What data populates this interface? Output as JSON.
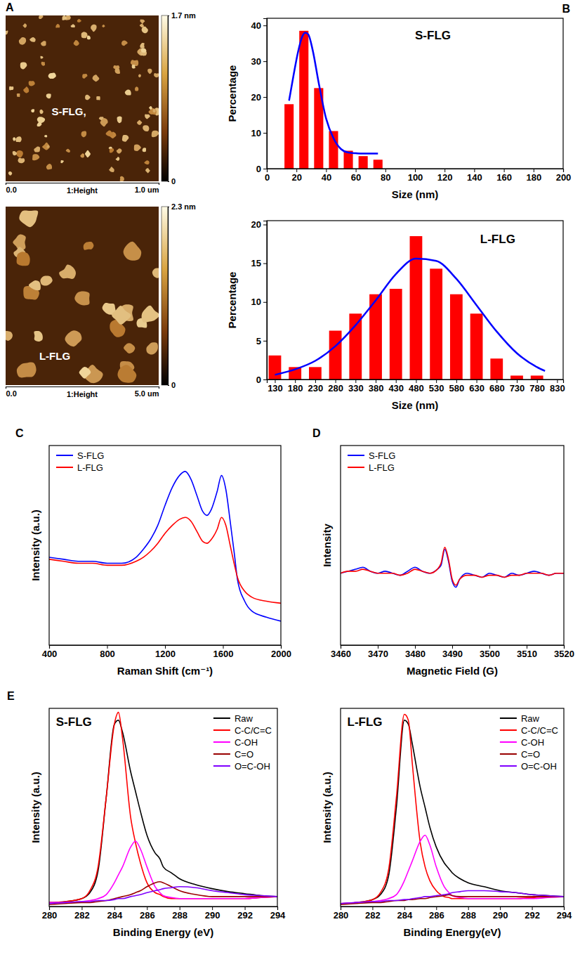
{
  "chart_data": [
    {
      "type": "image",
      "panel": "A",
      "title": "S-FLG,",
      "xlim": [
        0,
        1
      ],
      "xticks": [
        {
          "value": 0,
          "label": "0.0"
        },
        {
          "value": 1,
          "label": "1.0 um"
        }
      ],
      "xlabel": "1:Height",
      "colorbar": {
        "range": [
          0,
          1.7
        ],
        "ticks": [
          0,
          {
            "value": 1.7,
            "label": "1.7 nm"
          }
        ]
      }
    },
    {
      "type": "image",
      "title": "L-FLG",
      "xlim": [
        0,
        5
      ],
      "xticks": [
        {
          "value": 0,
          "label": "0.0"
        },
        {
          "value": 5,
          "label": "5.0 um"
        }
      ],
      "xlabel": "1:Height",
      "colorbar": {
        "range": [
          0,
          2.3
        ],
        "ticks": [
          0,
          {
            "value": 2.3,
            "label": "2.3 nm"
          }
        ]
      }
    },
    {
      "type": "bar",
      "panel": "B",
      "title": "S-FLG",
      "xlabel": "Size (nm)",
      "ylabel": "Percentage",
      "x": [
        15,
        25,
        35,
        45,
        55,
        65,
        75
      ],
      "values": [
        18,
        38.5,
        22.5,
        10.5,
        5,
        3.5,
        2.5
      ],
      "color": "#ff0000",
      "fit": {
        "x": [
          15,
          18,
          21,
          24,
          26,
          28,
          31,
          35,
          40,
          45,
          50,
          55,
          60,
          65,
          70,
          75
        ],
        "values": [
          19,
          26,
          32.5,
          37,
          38,
          37.5,
          33,
          24,
          14,
          8.5,
          5.5,
          4.5,
          4.3,
          4.2,
          4.2,
          4.2
        ],
        "color": "#0000ff"
      },
      "xlim": [
        0,
        200
      ],
      "xticks": [
        0,
        20,
        40,
        60,
        80,
        100,
        120,
        140,
        160,
        180,
        200
      ],
      "ylim": [
        0,
        42
      ],
      "yticks": [
        0,
        10,
        20,
        30,
        40
      ]
    },
    {
      "type": "bar",
      "title": "L-FLG",
      "xlabel": "Size (nm)",
      "ylabel": "Percentage",
      "x": [
        130,
        180,
        230,
        280,
        330,
        380,
        430,
        480,
        530,
        580,
        630,
        680,
        730,
        780
      ],
      "values": [
        3.1,
        1.6,
        1.6,
        6.3,
        8.5,
        11,
        11.7,
        18.5,
        14.3,
        11,
        8.5,
        2.7,
        0.5,
        0.5
      ],
      "color": "#ff0000",
      "fit": {
        "x": [
          130,
          180,
          230,
          280,
          330,
          380,
          430,
          480,
          530,
          580,
          630,
          680,
          730,
          780,
          800
        ],
        "values": [
          0.6,
          1.3,
          2.4,
          4.3,
          7.0,
          10.2,
          13.6,
          15.6,
          15.3,
          13.0,
          9.6,
          6.2,
          3.4,
          1.6,
          1.1
        ],
        "color": "#0000ff"
      },
      "xlim": [
        110,
        845
      ],
      "xticks": [
        130,
        180,
        230,
        280,
        330,
        380,
        430,
        480,
        530,
        580,
        630,
        680,
        730,
        780,
        830
      ],
      "ylim": [
        0,
        20.5
      ],
      "yticks": [
        0,
        5,
        10,
        15,
        20
      ]
    },
    {
      "type": "line",
      "panel": "C",
      "xlabel": "Raman Shift (cm⁻¹)",
      "ylabel": "Intensity (a.u.)",
      "x": [
        400,
        500,
        600,
        700,
        800,
        900,
        1000,
        1050,
        1100,
        1150,
        1200,
        1250,
        1300,
        1340,
        1380,
        1420,
        1460,
        1490,
        1520,
        1560,
        1590,
        1620,
        1650,
        1680,
        1700,
        1750,
        1800,
        1900,
        2000
      ],
      "series": [
        {
          "name": "S-FLG",
          "color": "#0000ff",
          "values": [
            44,
            43,
            42,
            42,
            41,
            41,
            44,
            48,
            53,
            60,
            70,
            79,
            85,
            87,
            83,
            75,
            67,
            65,
            68,
            77,
            85,
            78,
            62,
            45,
            33,
            22,
            17,
            14,
            12
          ]
        },
        {
          "name": "L-FLG",
          "color": "#ff0000",
          "values": [
            43,
            42,
            41,
            41,
            40,
            40,
            42,
            44,
            47,
            51,
            56,
            60,
            63,
            64,
            62,
            57,
            52,
            51,
            53,
            58,
            64,
            60,
            50,
            40,
            34,
            27,
            24,
            22,
            21
          ]
        }
      ],
      "xlim": [
        400,
        2000
      ],
      "xticks": [
        400,
        800,
        1200,
        1600,
        2000
      ],
      "ylim": [
        0,
        100
      ],
      "tick_labels": "x",
      "legend": "top-left"
    },
    {
      "type": "line",
      "panel": "D",
      "xlabel": "Magnetic Field (G)",
      "ylabel": "Intensity",
      "x": [
        3460,
        3462,
        3464,
        3466,
        3468,
        3470,
        3472,
        3474,
        3476,
        3478,
        3480,
        3482,
        3484,
        3486,
        3487,
        3488,
        3489,
        3490,
        3491,
        3492,
        3494,
        3496,
        3498,
        3500,
        3502,
        3504,
        3506,
        3508,
        3510,
        3512,
        3514,
        3516,
        3518,
        3520
      ],
      "series": [
        {
          "name": "S-FLG",
          "color": "#0000ff",
          "values": [
            36,
            37,
            38,
            39,
            37,
            36,
            37,
            36,
            35,
            37,
            39,
            37,
            36,
            38,
            40,
            48,
            42,
            32,
            29,
            33,
            36,
            35,
            34,
            36,
            35,
            34,
            36,
            35,
            36,
            37,
            36,
            35,
            36,
            36
          ]
        },
        {
          "name": "L-FLG",
          "color": "#ff0000",
          "values": [
            36,
            37,
            37,
            38,
            37,
            36,
            36,
            36,
            35,
            36,
            38,
            37,
            36,
            38,
            41,
            49,
            43,
            33,
            30,
            33,
            35,
            35,
            34,
            35,
            35,
            34,
            35,
            35,
            36,
            36,
            36,
            35,
            36,
            36
          ]
        }
      ],
      "xlim": [
        3460,
        3520
      ],
      "xticks": [
        3460,
        3470,
        3480,
        3490,
        3500,
        3510,
        3520
      ],
      "ylim": [
        0,
        100
      ],
      "tick_labels": "x",
      "legend": "top-left"
    },
    {
      "type": "line",
      "panel": "E",
      "title": "S-FLG",
      "xlabel": "Binding Energy (eV)",
      "ylabel": "Intensity (a.u.)",
      "x": [
        280,
        281,
        282,
        282.5,
        283,
        283.5,
        284,
        284.25,
        284.5,
        285,
        285.3,
        285.6,
        286,
        286.5,
        286.8,
        287,
        287.5,
        288,
        289,
        290,
        291,
        292,
        293,
        294
      ],
      "series": [
        {
          "name": "Raw",
          "color": "#000000",
          "values": [
            2,
            2.5,
            4,
            7,
            18,
            55,
            92,
            94,
            88,
            68,
            58,
            48,
            36,
            27,
            24,
            20,
            17,
            14,
            11,
            9,
            7.5,
            6.5,
            5.5,
            5
          ]
        },
        {
          "name": "C-C/C=C",
          "color": "#ff0000",
          "values": [
            2,
            2.5,
            4,
            8,
            20,
            55,
            92,
            98,
            85,
            45,
            32,
            22,
            12,
            7,
            6,
            5,
            4,
            4,
            4,
            4,
            4,
            4,
            4.5,
            5
          ]
        },
        {
          "name": "C-OH",
          "color": "#ff00ff",
          "values": [
            2,
            2,
            2.5,
            3,
            4,
            6,
            12,
            16,
            20,
            30,
            33,
            29,
            20,
            10,
            7,
            5.5,
            4.5,
            4,
            4,
            4,
            4,
            4,
            4.5,
            5
          ]
        },
        {
          "name": "C=O",
          "color": "#990000",
          "values": [
            1,
            1.5,
            2,
            2,
            2.5,
            3,
            4,
            4.5,
            5,
            6,
            7,
            8,
            10,
            12,
            12.5,
            12,
            10,
            8,
            6,
            5,
            5,
            5,
            5,
            5
          ]
        },
        {
          "name": "O=C-OH",
          "color": "#7f00ff",
          "values": [
            1.5,
            2,
            2.5,
            2.5,
            3,
            3,
            3.5,
            4,
            4,
            5,
            5.5,
            6,
            7,
            8,
            8.5,
            9,
            9.5,
            10,
            9.5,
            8,
            7,
            6,
            5.5,
            5
          ]
        }
      ],
      "xlim": [
        280,
        294
      ],
      "xticks": [
        280,
        282,
        284,
        286,
        288,
        290,
        292,
        294
      ],
      "ylim": [
        0,
        100
      ],
      "tick_labels": "x",
      "legend": "top-right"
    },
    {
      "type": "line",
      "title": "L-FLG",
      "xlabel": "Binding Energy(eV)",
      "ylabel": "Intensity (a.u.)",
      "x": [
        280,
        281,
        282,
        282.5,
        283,
        283.5,
        284,
        284.25,
        284.5,
        285,
        285.3,
        285.6,
        286,
        286.5,
        286.8,
        287,
        287.5,
        288,
        289,
        290,
        291,
        292,
        293,
        294
      ],
      "series": [
        {
          "name": "Raw",
          "color": "#000000",
          "values": [
            1.5,
            2,
            3.5,
            6,
            15,
            50,
            94,
            92,
            82,
            60,
            50,
            40,
            30,
            22,
            19,
            17,
            14,
            12,
            10,
            8,
            7,
            6,
            5.5,
            5
          ]
        },
        {
          "name": "C-C/C=C",
          "color": "#ff0000",
          "values": [
            1.5,
            2,
            3.5,
            7,
            18,
            55,
            97,
            94,
            72,
            32,
            20,
            13,
            8,
            5,
            4.5,
            4,
            4,
            4,
            4,
            4,
            4,
            4.5,
            5,
            5
          ]
        },
        {
          "name": "C-OH",
          "color": "#ff00ff",
          "values": [
            1.5,
            2,
            2.5,
            3,
            4,
            6,
            13,
            18,
            23,
            33,
            36,
            31,
            20,
            10,
            7,
            5.5,
            4.5,
            4,
            4,
            4,
            4,
            4,
            4.5,
            5
          ]
        },
        {
          "name": "C=O",
          "color": "#990000",
          "values": [
            1,
            1.5,
            2,
            2,
            2.5,
            3,
            3,
            3.5,
            3.5,
            4,
            4,
            4.5,
            5,
            5.5,
            6,
            5.5,
            5,
            5,
            5,
            5,
            5,
            5,
            5,
            5
          ]
        },
        {
          "name": "O=C-OH",
          "color": "#7f00ff",
          "values": [
            1.5,
            2,
            2.5,
            2.5,
            3,
            3,
            3.5,
            3.5,
            4,
            4.5,
            5,
            5,
            5.5,
            6,
            6.5,
            7,
            7.5,
            8,
            8,
            7.5,
            7,
            6,
            5.5,
            5
          ]
        }
      ],
      "xlim": [
        280,
        294
      ],
      "xticks": [
        280,
        282,
        284,
        286,
        288,
        290,
        292,
        294
      ],
      "ylim": [
        0,
        100
      ],
      "tick_labels": "x",
      "legend": "top-right"
    }
  ]
}
